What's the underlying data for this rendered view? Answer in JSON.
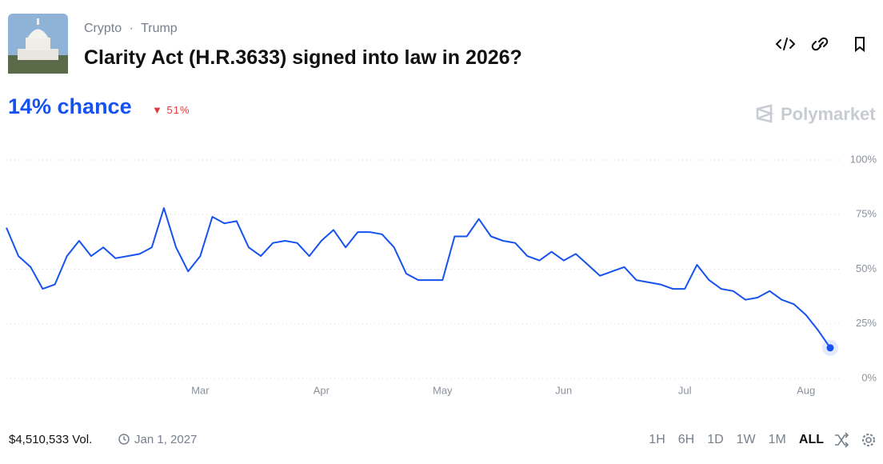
{
  "header": {
    "tags": [
      "Crypto",
      "Trump"
    ],
    "tag_separator": "·",
    "title": "Clarity Act (H.R.3633) signed into law in 2026?",
    "chance": "14% chance",
    "change": "51%",
    "brand": "Polymarket"
  },
  "chart_data": {
    "type": "line",
    "categories": [
      null,
      null,
      null,
      null,
      null,
      null,
      null,
      null,
      null,
      null,
      null,
      null,
      null,
      null,
      null,
      null,
      "Mar",
      null,
      null,
      null,
      null,
      null,
      null,
      null,
      null,
      null,
      "Apr",
      null,
      null,
      null,
      null,
      null,
      null,
      null,
      null,
      null,
      "May",
      null,
      null,
      null,
      null,
      null,
      null,
      null,
      null,
      null,
      "Jun",
      null,
      null,
      null,
      null,
      null,
      null,
      null,
      null,
      null,
      "Jul",
      null,
      null,
      null,
      null,
      null,
      null,
      null,
      null,
      null,
      "Aug",
      null,
      null
    ],
    "series": [
      {
        "color": "#1652f0",
        "values": [
          69,
          56,
          51,
          41,
          43,
          56,
          63,
          56,
          60,
          55,
          56,
          57,
          60,
          78,
          60,
          49,
          56,
          74,
          71,
          72,
          60,
          56,
          62,
          63,
          62,
          56,
          63,
          68,
          60,
          67,
          67,
          66,
          60,
          48,
          45,
          45,
          45,
          65,
          65,
          73,
          65,
          63,
          62,
          56,
          54,
          58,
          54,
          57,
          52,
          47,
          49,
          51,
          45,
          44,
          43,
          41,
          41,
          52,
          45,
          41,
          40,
          36,
          37,
          40,
          36,
          34,
          29,
          22,
          14
        ]
      }
    ],
    "ylim": [
      0,
      100
    ],
    "yticks": [
      {
        "value": 0,
        "label": "0%"
      },
      {
        "value": 25,
        "label": "25%"
      },
      {
        "value": 50,
        "label": "50%"
      },
      {
        "value": 75,
        "label": "75%"
      },
      {
        "value": 100,
        "label": "100%"
      }
    ],
    "grid": true
  },
  "footer": {
    "volume": "$4,510,533 Vol.",
    "end_date": "Jan 1, 2027",
    "ranges": [
      "1H",
      "6H",
      "1D",
      "1W",
      "1M",
      "ALL"
    ],
    "active_range": "ALL"
  }
}
